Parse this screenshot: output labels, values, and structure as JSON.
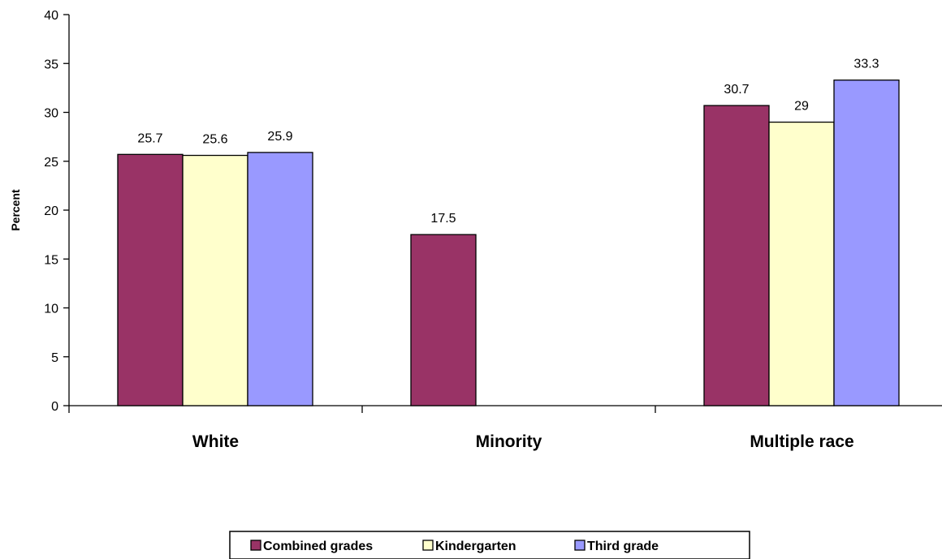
{
  "chart_data": {
    "type": "bar",
    "categories": [
      "White",
      "Minority",
      "Multiple race"
    ],
    "series": [
      {
        "name": "Combined grades",
        "color": "#993366",
        "values": [
          25.7,
          17.5,
          30.7
        ],
        "labels": [
          "25.7",
          "17.5",
          "30.7"
        ]
      },
      {
        "name": "Kindergarten",
        "color": "#FFFFCC",
        "values": [
          25.6,
          null,
          29
        ],
        "labels": [
          "25.6",
          "",
          "29"
        ]
      },
      {
        "name": "Third grade",
        "color": "#9999FF",
        "values": [
          25.9,
          null,
          33.3
        ],
        "labels": [
          "25.9",
          "",
          "33.3"
        ]
      }
    ],
    "ylabel": "Percent",
    "ylim": [
      0,
      40
    ],
    "yticks": [
      "0",
      "5",
      "10",
      "15",
      "20",
      "25",
      "30",
      "35",
      "40"
    ],
    "grid": false,
    "legend_position": "bottom"
  }
}
